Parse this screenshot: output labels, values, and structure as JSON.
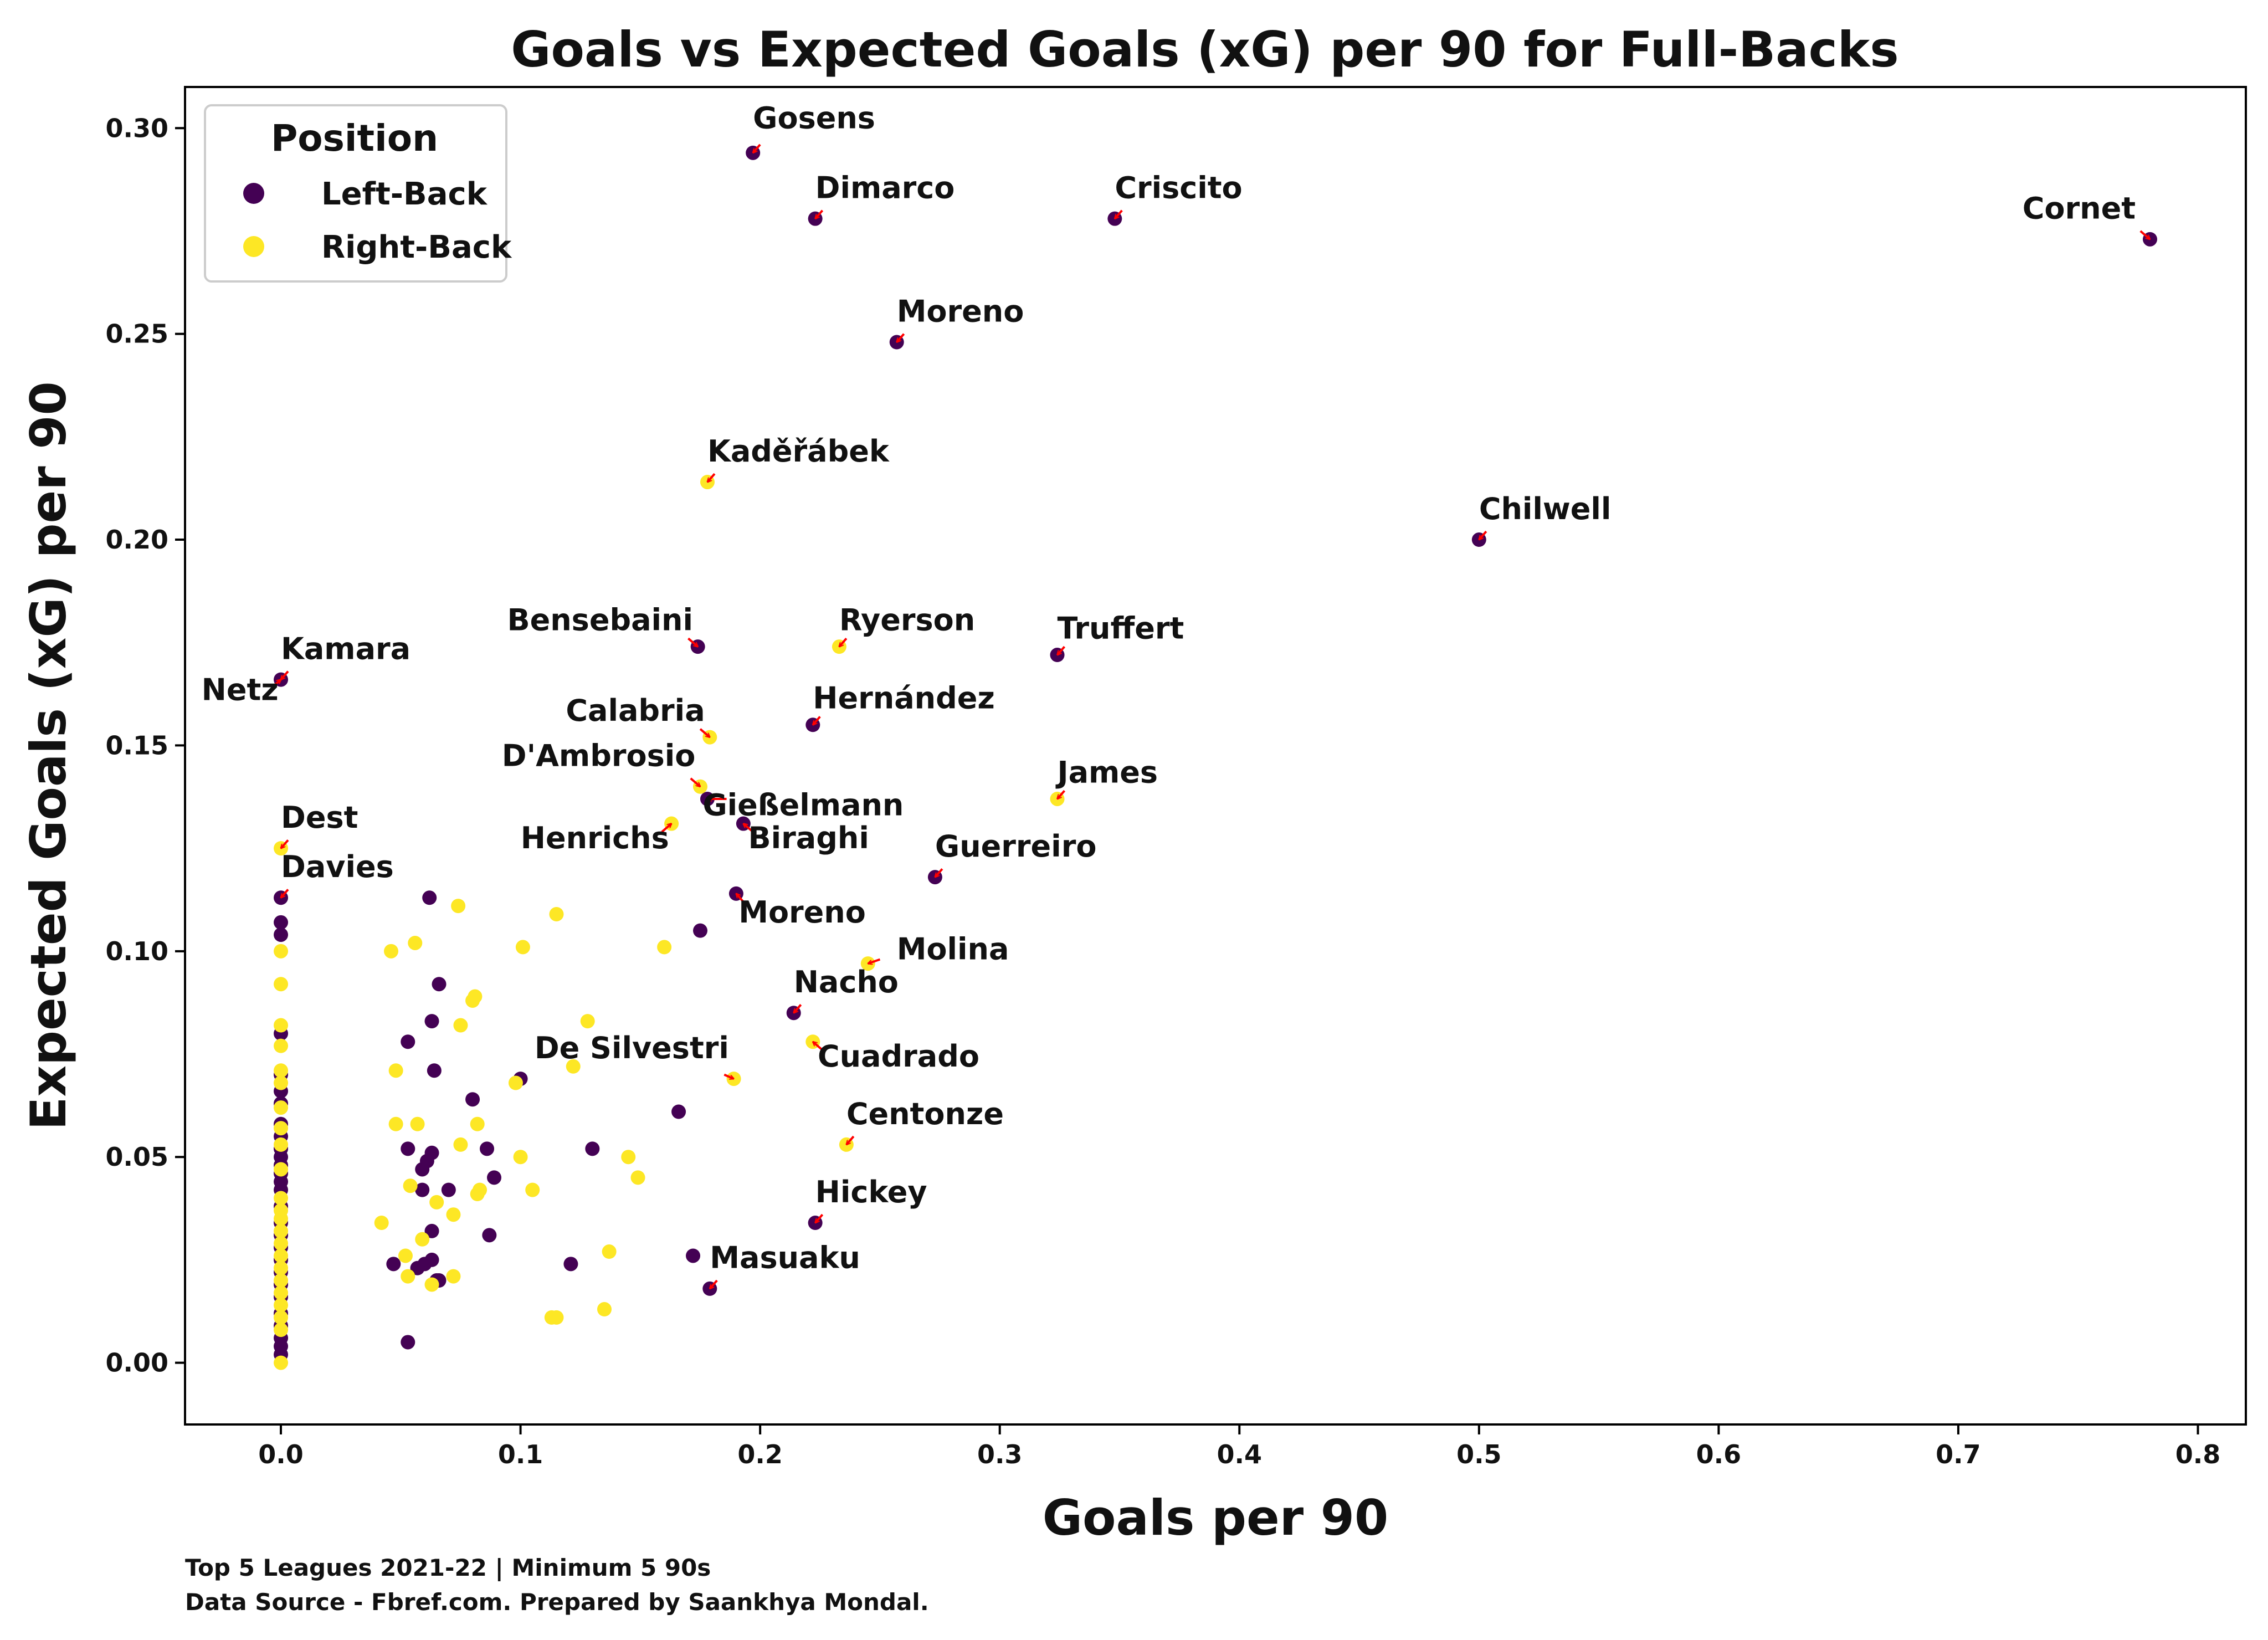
{
  "chart_data": {
    "type": "scatter",
    "title": "Goals vs Expected Goals (xG) per 90 for Full-Backs",
    "xlabel": "Goals per 90",
    "ylabel": "Expected Goals (xG) per 90",
    "xlim": [
      -0.04,
      0.82
    ],
    "ylim": [
      -0.015,
      0.31
    ],
    "xticks": [
      0.0,
      0.1,
      0.2,
      0.3,
      0.4,
      0.5,
      0.6,
      0.7,
      0.8
    ],
    "yticks": [
      0.0,
      0.05,
      0.1,
      0.15,
      0.2,
      0.25,
      0.3
    ],
    "xtick_labels": [
      "0.0",
      "0.1",
      "0.2",
      "0.3",
      "0.4",
      "0.5",
      "0.6",
      "0.7",
      "0.8"
    ],
    "ytick_labels": [
      "0.00",
      "0.05",
      "0.10",
      "0.15",
      "0.20",
      "0.25",
      "0.30"
    ],
    "grid": false,
    "legend": {
      "title": "Position",
      "placement": "top-left",
      "entries": [
        {
          "label": "Left-Back",
          "color": "#440154"
        },
        {
          "label": "Right-Back",
          "color": "#fde725"
        }
      ]
    },
    "colors": {
      "Left-Back": "#440154",
      "Right-Back": "#fde725",
      "arrow": "#ff0000"
    },
    "series": [
      {
        "name": "Left-Back",
        "points": [
          [
            0.197,
            0.294
          ],
          [
            0.223,
            0.278
          ],
          [
            0.348,
            0.278
          ],
          [
            0.78,
            0.273
          ],
          [
            0.257,
            0.248
          ],
          [
            0.5,
            0.2
          ],
          [
            0.174,
            0.174
          ],
          [
            0.324,
            0.172
          ],
          [
            0.0,
            0.166
          ],
          [
            0.222,
            0.155
          ],
          [
            0.178,
            0.137
          ],
          [
            0.193,
            0.131
          ],
          [
            0.273,
            0.118
          ],
          [
            0.0,
            0.113
          ],
          [
            0.19,
            0.114
          ],
          [
            0.214,
            0.085
          ],
          [
            0.223,
            0.034
          ],
          [
            0.179,
            0.018
          ],
          [
            0.0,
            0.107
          ],
          [
            0.0,
            0.104
          ],
          [
            0.0,
            0.08
          ],
          [
            0.0,
            0.07
          ],
          [
            0.0,
            0.066
          ],
          [
            0.0,
            0.063
          ],
          [
            0.0,
            0.058
          ],
          [
            0.0,
            0.055
          ],
          [
            0.0,
            0.052
          ],
          [
            0.0,
            0.05
          ],
          [
            0.0,
            0.048
          ],
          [
            0.0,
            0.046
          ],
          [
            0.0,
            0.044
          ],
          [
            0.0,
            0.042
          ],
          [
            0.0,
            0.038
          ],
          [
            0.0,
            0.034
          ],
          [
            0.0,
            0.031
          ],
          [
            0.0,
            0.028
          ],
          [
            0.0,
            0.025
          ],
          [
            0.0,
            0.022
          ],
          [
            0.0,
            0.019
          ],
          [
            0.0,
            0.016
          ],
          [
            0.0,
            0.012
          ],
          [
            0.0,
            0.009
          ],
          [
            0.0,
            0.006
          ],
          [
            0.0,
            0.004
          ],
          [
            0.0,
            0.002
          ],
          [
            0.062,
            0.113
          ],
          [
            0.066,
            0.092
          ],
          [
            0.175,
            0.105
          ],
          [
            0.063,
            0.083
          ],
          [
            0.053,
            0.078
          ],
          [
            0.064,
            0.071
          ],
          [
            0.1,
            0.069
          ],
          [
            0.08,
            0.064
          ],
          [
            0.166,
            0.061
          ],
          [
            0.053,
            0.052
          ],
          [
            0.086,
            0.052
          ],
          [
            0.063,
            0.051
          ],
          [
            0.061,
            0.049
          ],
          [
            0.059,
            0.047
          ],
          [
            0.13,
            0.052
          ],
          [
            0.089,
            0.045
          ],
          [
            0.059,
            0.042
          ],
          [
            0.07,
            0.042
          ],
          [
            0.063,
            0.032
          ],
          [
            0.087,
            0.031
          ],
          [
            0.047,
            0.024
          ],
          [
            0.063,
            0.025
          ],
          [
            0.057,
            0.023
          ],
          [
            0.06,
            0.024
          ],
          [
            0.121,
            0.024
          ],
          [
            0.172,
            0.026
          ],
          [
            0.066,
            0.02
          ],
          [
            0.065,
            0.02
          ],
          [
            0.053,
            0.005
          ]
        ]
      },
      {
        "name": "Right-Back",
        "points": [
          [
            0.178,
            0.214
          ],
          [
            0.233,
            0.174
          ],
          [
            0.179,
            0.152
          ],
          [
            0.175,
            0.14
          ],
          [
            0.163,
            0.131
          ],
          [
            0.324,
            0.137
          ],
          [
            0.0,
            0.125
          ],
          [
            0.245,
            0.097
          ],
          [
            0.222,
            0.078
          ],
          [
            0.189,
            0.069
          ],
          [
            0.236,
            0.053
          ],
          [
            0.0,
            0.1
          ],
          [
            0.0,
            0.092
          ],
          [
            0.0,
            0.082
          ],
          [
            0.0,
            0.077
          ],
          [
            0.0,
            0.071
          ],
          [
            0.0,
            0.068
          ],
          [
            0.0,
            0.062
          ],
          [
            0.0,
            0.057
          ],
          [
            0.0,
            0.053
          ],
          [
            0.0,
            0.047
          ],
          [
            0.0,
            0.04
          ],
          [
            0.0,
            0.037
          ],
          [
            0.0,
            0.035
          ],
          [
            0.0,
            0.032
          ],
          [
            0.0,
            0.029
          ],
          [
            0.0,
            0.026
          ],
          [
            0.0,
            0.023
          ],
          [
            0.0,
            0.02
          ],
          [
            0.0,
            0.017
          ],
          [
            0.0,
            0.014
          ],
          [
            0.0,
            0.011
          ],
          [
            0.0,
            0.008
          ],
          [
            0.0,
            0.0
          ],
          [
            0.074,
            0.111
          ],
          [
            0.115,
            0.109
          ],
          [
            0.056,
            0.102
          ],
          [
            0.046,
            0.1
          ],
          [
            0.101,
            0.101
          ],
          [
            0.16,
            0.101
          ],
          [
            0.081,
            0.089
          ],
          [
            0.08,
            0.088
          ],
          [
            0.128,
            0.083
          ],
          [
            0.075,
            0.082
          ],
          [
            0.048,
            0.071
          ],
          [
            0.122,
            0.072
          ],
          [
            0.098,
            0.068
          ],
          [
            0.048,
            0.058
          ],
          [
            0.057,
            0.058
          ],
          [
            0.082,
            0.058
          ],
          [
            0.075,
            0.053
          ],
          [
            0.1,
            0.05
          ],
          [
            0.145,
            0.05
          ],
          [
            0.149,
            0.045
          ],
          [
            0.054,
            0.043
          ],
          [
            0.105,
            0.042
          ],
          [
            0.083,
            0.042
          ],
          [
            0.082,
            0.041
          ],
          [
            0.065,
            0.039
          ],
          [
            0.072,
            0.036
          ],
          [
            0.042,
            0.034
          ],
          [
            0.059,
            0.03
          ],
          [
            0.137,
            0.027
          ],
          [
            0.052,
            0.026
          ],
          [
            0.072,
            0.021
          ],
          [
            0.053,
            0.021
          ],
          [
            0.063,
            0.019
          ],
          [
            0.113,
            0.011
          ],
          [
            0.115,
            0.011
          ],
          [
            0.135,
            0.013
          ]
        ]
      }
    ],
    "annotations": [
      {
        "text": "Gosens",
        "x": 0.197,
        "y": 0.294,
        "ax": 0.2,
        "ay": 0.296,
        "tx": 0.197,
        "ty": 0.3,
        "anchor": "start"
      },
      {
        "text": "Dimarco",
        "x": 0.223,
        "y": 0.278,
        "ax": 0.226,
        "ay": 0.28,
        "tx": 0.223,
        "ty": 0.283,
        "anchor": "start"
      },
      {
        "text": "Criscito",
        "x": 0.348,
        "y": 0.278,
        "ax": 0.351,
        "ay": 0.28,
        "tx": 0.348,
        "ty": 0.283,
        "anchor": "start"
      },
      {
        "text": "Cornet",
        "x": 0.78,
        "y": 0.273,
        "ax": 0.776,
        "ay": 0.275,
        "tx": 0.774,
        "ty": 0.278,
        "anchor": "end"
      },
      {
        "text": "Moreno",
        "x": 0.257,
        "y": 0.248,
        "ax": 0.26,
        "ay": 0.25,
        "tx": 0.257,
        "ty": 0.253,
        "anchor": "start"
      },
      {
        "text": "Kaděřábek",
        "x": 0.178,
        "y": 0.214,
        "ax": 0.181,
        "ay": 0.216,
        "tx": 0.178,
        "ty": 0.219,
        "anchor": "start"
      },
      {
        "text": "Chilwell",
        "x": 0.5,
        "y": 0.2,
        "ax": 0.503,
        "ay": 0.202,
        "tx": 0.5,
        "ty": 0.205,
        "anchor": "start"
      },
      {
        "text": "Bensebaini",
        "x": 0.174,
        "y": 0.174,
        "ax": 0.17,
        "ay": 0.176,
        "tx": 0.172,
        "ty": 0.178,
        "anchor": "end"
      },
      {
        "text": "Ryerson",
        "x": 0.233,
        "y": 0.174,
        "ax": 0.236,
        "ay": 0.176,
        "tx": 0.233,
        "ty": 0.178,
        "anchor": "start"
      },
      {
        "text": "Truffert",
        "x": 0.324,
        "y": 0.172,
        "ax": 0.327,
        "ay": 0.174,
        "tx": 0.324,
        "ty": 0.176,
        "anchor": "start"
      },
      {
        "text": "Kamara",
        "x": 0.0,
        "y": 0.166,
        "ax": 0.003,
        "ay": 0.168,
        "tx": 0.0,
        "ty": 0.171,
        "anchor": "start"
      },
      {
        "text": "Netz",
        "x": 0.0,
        "y": 0.166,
        "ax": -0.004,
        "ay": 0.164,
        "tx": -0.001,
        "ty": 0.161,
        "anchor": "end"
      },
      {
        "text": "Hernández",
        "x": 0.222,
        "y": 0.155,
        "ax": 0.225,
        "ay": 0.157,
        "tx": 0.222,
        "ty": 0.159,
        "anchor": "start"
      },
      {
        "text": "Calabria",
        "x": 0.179,
        "y": 0.152,
        "ax": 0.175,
        "ay": 0.154,
        "tx": 0.177,
        "ty": 0.156,
        "anchor": "end"
      },
      {
        "text": "D'Ambrosio",
        "x": 0.175,
        "y": 0.14,
        "ax": 0.171,
        "ay": 0.142,
        "tx": 0.173,
        "ty": 0.145,
        "anchor": "end"
      },
      {
        "text": "James",
        "x": 0.324,
        "y": 0.137,
        "ax": 0.327,
        "ay": 0.139,
        "tx": 0.324,
        "ty": 0.141,
        "anchor": "start"
      },
      {
        "text": "Gießelmann",
        "x": 0.178,
        "y": 0.137,
        "ax": 0.186,
        "ay": 0.137,
        "tx": 0.176,
        "ty": 0.133,
        "anchor": "start"
      },
      {
        "text": "Henrichs",
        "x": 0.163,
        "y": 0.131,
        "ax": 0.159,
        "ay": 0.129,
        "tx": 0.162,
        "ty": 0.125,
        "anchor": "end"
      },
      {
        "text": "Biraghi",
        "x": 0.193,
        "y": 0.131,
        "ax": 0.197,
        "ay": 0.129,
        "tx": 0.195,
        "ty": 0.125,
        "anchor": "start"
      },
      {
        "text": "Dest",
        "x": 0.0,
        "y": 0.125,
        "ax": 0.003,
        "ay": 0.127,
        "tx": 0.0,
        "ty": 0.13,
        "anchor": "start"
      },
      {
        "text": "Guerreiro",
        "x": 0.273,
        "y": 0.118,
        "ax": 0.276,
        "ay": 0.12,
        "tx": 0.273,
        "ty": 0.123,
        "anchor": "start"
      },
      {
        "text": "Davies",
        "x": 0.0,
        "y": 0.113,
        "ax": 0.003,
        "ay": 0.115,
        "tx": 0.0,
        "ty": 0.118,
        "anchor": "start"
      },
      {
        "text": "Moreno",
        "x": 0.19,
        "y": 0.114,
        "ax": 0.193,
        "ay": 0.112,
        "tx": 0.191,
        "ty": 0.107,
        "anchor": "start"
      },
      {
        "text": "Molina",
        "x": 0.245,
        "y": 0.097,
        "ax": 0.25,
        "ay": 0.098,
        "tx": 0.257,
        "ty": 0.098,
        "anchor": "start"
      },
      {
        "text": "Nacho",
        "x": 0.214,
        "y": 0.085,
        "ax": 0.217,
        "ay": 0.087,
        "tx": 0.214,
        "ty": 0.09,
        "anchor": "start"
      },
      {
        "text": "Cuadrado",
        "x": 0.222,
        "y": 0.078,
        "ax": 0.226,
        "ay": 0.076,
        "tx": 0.224,
        "ty": 0.072,
        "anchor": "start"
      },
      {
        "text": "De Silvestri",
        "x": 0.189,
        "y": 0.069,
        "ax": 0.185,
        "ay": 0.07,
        "tx": 0.187,
        "ty": 0.074,
        "anchor": "end"
      },
      {
        "text": "Centonze",
        "x": 0.236,
        "y": 0.053,
        "ax": 0.239,
        "ay": 0.055,
        "tx": 0.236,
        "ty": 0.058,
        "anchor": "start"
      },
      {
        "text": "Hickey",
        "x": 0.223,
        "y": 0.034,
        "ax": 0.226,
        "ay": 0.036,
        "tx": 0.223,
        "ty": 0.039,
        "anchor": "start"
      },
      {
        "text": "Masuaku",
        "x": 0.179,
        "y": 0.018,
        "ax": 0.182,
        "ay": 0.02,
        "tx": 0.179,
        "ty": 0.023,
        "anchor": "start"
      }
    ]
  },
  "footer": {
    "line1": "Top 5 Leagues 2021-22 | Minimum 5 90s",
    "line2": "Data Source - Fbref.com. Prepared by Saankhya Mondal."
  }
}
